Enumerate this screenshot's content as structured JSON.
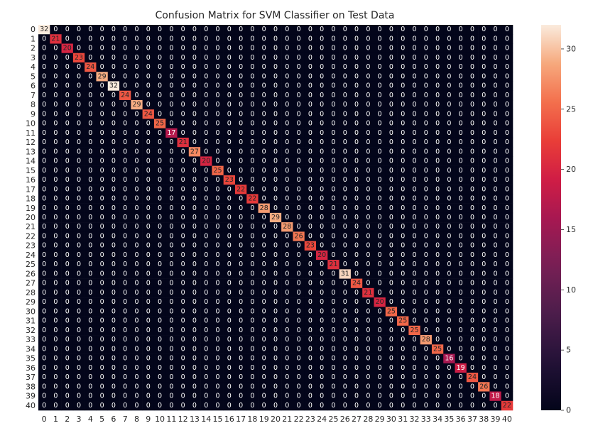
{
  "chart_data": {
    "type": "heatmap",
    "title": "Confusion Matrix for SVM Classifier on Test Data",
    "xlabel": "",
    "ylabel": "",
    "labels": [
      "0",
      "1",
      "2",
      "3",
      "4",
      "5",
      "6",
      "7",
      "8",
      "9",
      "10",
      "11",
      "12",
      "13",
      "14",
      "15",
      "16",
      "17",
      "18",
      "19",
      "20",
      "21",
      "22",
      "23",
      "24",
      "25",
      "26",
      "27",
      "28",
      "29",
      "30",
      "31",
      "32",
      "33",
      "34",
      "35",
      "36",
      "37",
      "38",
      "39",
      "40"
    ],
    "diagonal": [
      32,
      21,
      20,
      23,
      24,
      29,
      32,
      24,
      29,
      24,
      25,
      17,
      21,
      27,
      20,
      25,
      23,
      22,
      22,
      28,
      29,
      28,
      26,
      23,
      20,
      21,
      31,
      24,
      21,
      20,
      25,
      25,
      25,
      28,
      25,
      16,
      19,
      24,
      26,
      18,
      22
    ],
    "off_diagonal_value": 0,
    "annotated": true,
    "grid": false,
    "colormap": "rocket",
    "colorbar": {
      "min": 0,
      "max": 32,
      "ticks": [
        0,
        5,
        10,
        15,
        20,
        25,
        30
      ],
      "tick_labels": [
        "0",
        "5",
        "10",
        "15",
        "20",
        "25",
        "30"
      ],
      "position": "right"
    }
  }
}
